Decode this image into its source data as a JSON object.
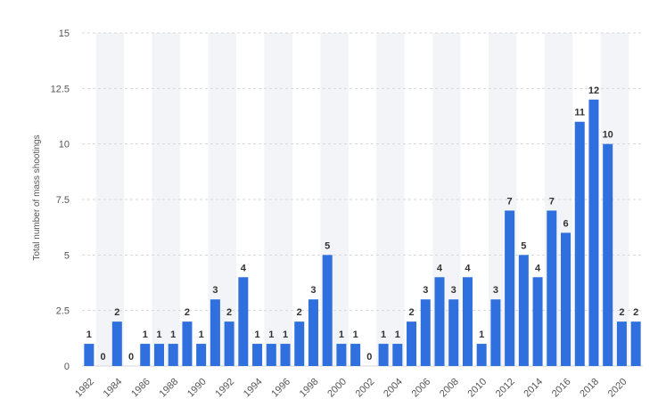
{
  "chart_data": {
    "type": "bar",
    "ylabel": "Total number of mass shootings",
    "xlabel": "",
    "ylim": [
      0,
      15
    ],
    "yticks": [
      0,
      2.5,
      5,
      7.5,
      10,
      12.5,
      15
    ],
    "ytick_labels": [
      "0",
      "2.5",
      "5",
      "7.5",
      "10",
      "12.5",
      "15"
    ],
    "categories": [
      "1982",
      "1983",
      "1984",
      "1985",
      "1986",
      "1987",
      "1988",
      "1989",
      "1990",
      "1991",
      "1992",
      "1993",
      "1994",
      "1995",
      "1996",
      "1997",
      "1998",
      "1999",
      "2000",
      "2001",
      "2002",
      "2003",
      "2004",
      "2005",
      "2006",
      "2007",
      "2008",
      "2009",
      "2010",
      "2011",
      "2012",
      "2013",
      "2014",
      "2015",
      "2016",
      "2017",
      "2018",
      "2019",
      "2020",
      "2021"
    ],
    "values": [
      1,
      0,
      2,
      0,
      1,
      1,
      1,
      2,
      1,
      3,
      2,
      4,
      1,
      1,
      1,
      2,
      3,
      5,
      1,
      1,
      0,
      1,
      1,
      2,
      3,
      4,
      3,
      4,
      1,
      3,
      7,
      5,
      4,
      7,
      6,
      11,
      12,
      10,
      2,
      2
    ],
    "xtick_labels": [
      "1982",
      "1984",
      "1986",
      "1988",
      "1990",
      "1992",
      "1994",
      "1996",
      "1998",
      "2000",
      "2002",
      "2004",
      "2006",
      "2008",
      "2010",
      "2012",
      "2014",
      "2016",
      "2018",
      "2020"
    ],
    "grid": true,
    "bar_color": "#2f6fde",
    "band_color": "#f2f4f8",
    "gridline_color": "#d7d7d7"
  }
}
